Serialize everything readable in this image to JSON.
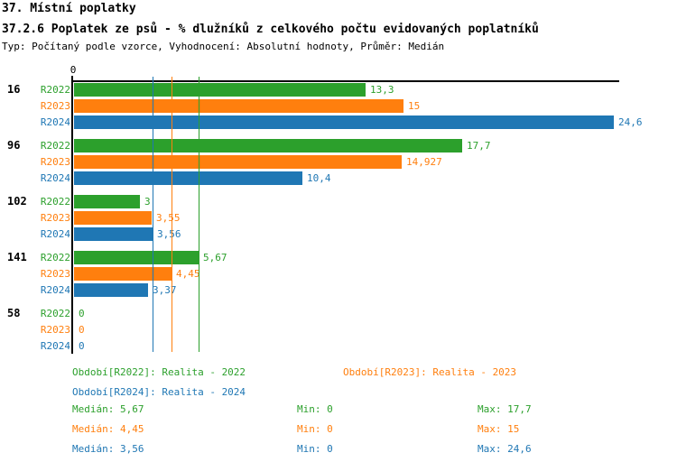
{
  "header": {
    "title": "37. Místní poplatky",
    "subtitle": "37.2.6 Poplatek ze psů - % dlužníků z celkového počtu evidovaných poplatníků",
    "meta": "Typ: Počítaný podle vzorce, Vyhodnocení: Absolutní hodnoty, Průměr: Medián"
  },
  "chart_data": {
    "type": "bar",
    "orientation": "horizontal",
    "zero_label": "0",
    "xlim": [
      0,
      24.6
    ],
    "grid": "vertical median lines per series",
    "legend_position": "bottom",
    "categories": [
      "16",
      "96",
      "102",
      "141",
      "58"
    ],
    "series": [
      {
        "name": "R2022",
        "color": "#2ca02c",
        "values": [
          13.3,
          17.7,
          3,
          5.67,
          0
        ],
        "value_labels": [
          "13,3",
          "17,7",
          "3",
          "5,67",
          "0"
        ],
        "median": 5.67,
        "min": 0,
        "max": 17.7
      },
      {
        "name": "R2023",
        "color": "#ff7f0e",
        "values": [
          15,
          14.927,
          3.55,
          4.45,
          0
        ],
        "value_labels": [
          "15",
          "14,927",
          "3,55",
          "4,45",
          "0"
        ],
        "median": 4.45,
        "min": 0,
        "max": 15
      },
      {
        "name": "R2024",
        "color": "#1f77b4",
        "values": [
          24.6,
          10.4,
          3.56,
          3.37,
          0
        ],
        "value_labels": [
          "24,6",
          "10,4",
          "3,56",
          "3,37",
          "0"
        ],
        "median": 3.56,
        "min": 0,
        "max": 24.6
      }
    ]
  },
  "legend": {
    "items": [
      {
        "label": "Období[R2022]: Realita - 2022",
        "color": "#2ca02c"
      },
      {
        "label": "Období[R2023]: Realita - 2023",
        "color": "#ff7f0e"
      },
      {
        "label": "Období[R2024]: Realita - 2024",
        "color": "#1f77b4"
      }
    ]
  },
  "stats": {
    "rows": [
      {
        "median": "Medián: 5,67",
        "min": "Min: 0",
        "max": "Max: 17,7",
        "color": "#2ca02c"
      },
      {
        "median": "Medián: 4,45",
        "min": "Min: 0",
        "max": "Max: 15",
        "color": "#ff7f0e"
      },
      {
        "median": "Medián: 3,56",
        "min": "Min: 0",
        "max": "Max: 24,6",
        "color": "#1f77b4"
      }
    ]
  },
  "colors": {
    "axis": "#000000",
    "background": "#ffffff"
  }
}
